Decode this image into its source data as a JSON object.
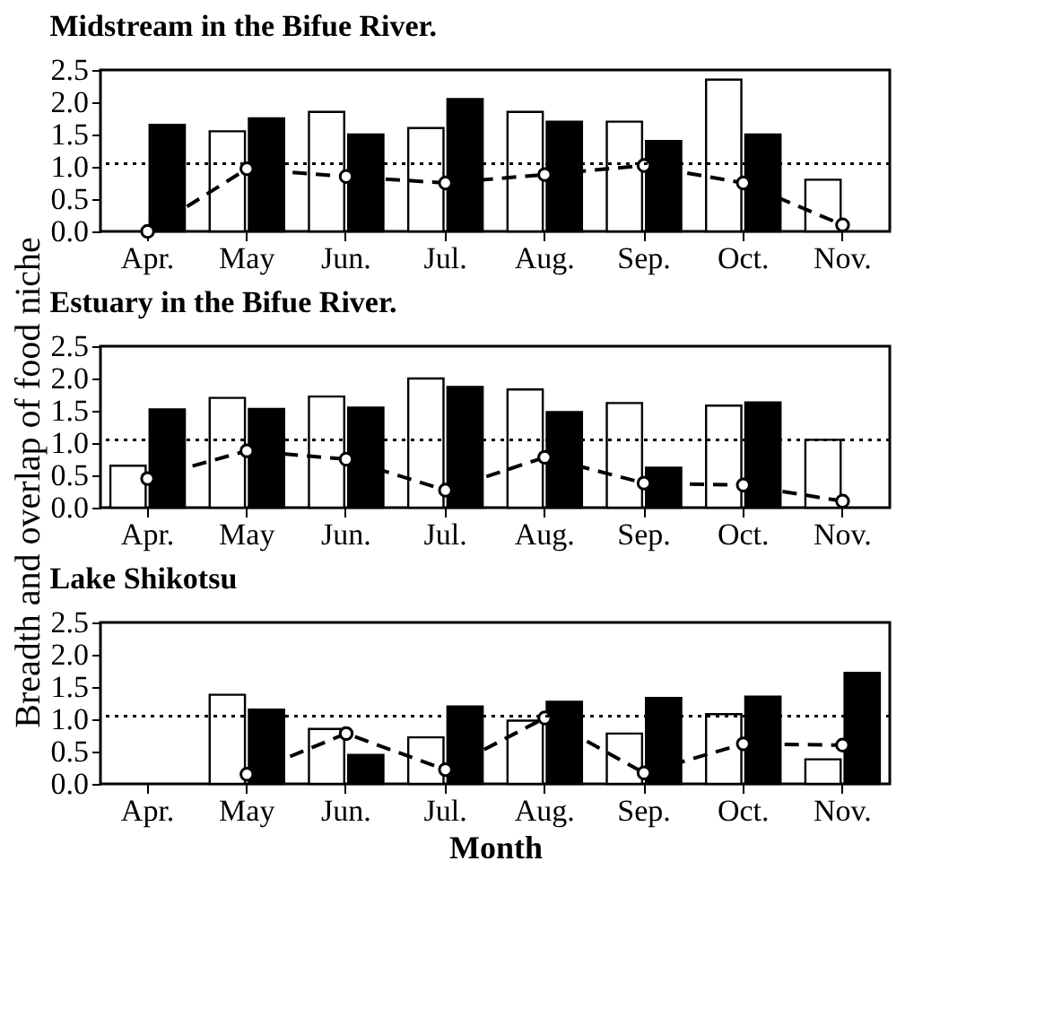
{
  "chart_data": [
    {
      "type": "bar",
      "title": "Midstream in the Bifue River.",
      "categories": [
        "Apr.",
        "May",
        "Jun.",
        "Jul.",
        "Aug.",
        "Sep.",
        "Oct.",
        "Nov."
      ],
      "series": [
        {
          "type": "bar",
          "color": "#ffffff",
          "values": [
            null,
            1.55,
            1.85,
            1.6,
            1.85,
            1.7,
            2.35,
            0.8
          ]
        },
        {
          "type": "bar",
          "color": "#000000",
          "values": [
            1.65,
            1.75,
            1.5,
            2.05,
            1.7,
            1.4,
            1.5,
            null
          ]
        },
        {
          "type": "line",
          "color": "#000000",
          "line_style": "dashed",
          "marker": "circle",
          "values": [
            0.0,
            0.97,
            0.85,
            0.75,
            0.88,
            1.02,
            0.75,
            0.1
          ]
        }
      ],
      "ylim": [
        0,
        2.5
      ],
      "yticks": [
        {
          "value": 0,
          "label": "0.0"
        },
        0.5,
        {
          "value": 1,
          "label": "1.0"
        },
        1.5,
        {
          "value": 2,
          "label": "2.0"
        },
        2.5
      ],
      "ref_lines": [
        {
          "axis": "y",
          "value": 1.05,
          "line_style": "dotted",
          "color": "#000000"
        }
      ]
    },
    {
      "type": "bar",
      "title": "Estuary in the Bifue River.",
      "ylabel": "Breadth and overlap of food niche",
      "categories": [
        "Apr.",
        "May",
        "Jun.",
        "Jul.",
        "Aug.",
        "Sep.",
        "Oct.",
        "Nov."
      ],
      "series": [
        {
          "type": "bar",
          "color": "#ffffff",
          "values": [
            0.65,
            1.7,
            1.72,
            2.0,
            1.83,
            1.62,
            1.58,
            1.05
          ]
        },
        {
          "type": "bar",
          "color": "#000000",
          "values": [
            1.52,
            1.53,
            1.55,
            1.87,
            1.48,
            0.62,
            1.63,
            null
          ]
        },
        {
          "type": "line",
          "color": "#000000",
          "line_style": "dashed",
          "marker": "circle",
          "values": [
            0.45,
            0.88,
            0.75,
            0.27,
            0.78,
            0.38,
            0.35,
            0.1
          ]
        }
      ],
      "ylim": [
        0,
        2.5
      ],
      "yticks": [
        {
          "value": 0,
          "label": "0.0"
        },
        0.5,
        {
          "value": 1,
          "label": "1.0"
        },
        1.5,
        {
          "value": 2,
          "label": "2.0"
        },
        2.5
      ],
      "ref_lines": [
        {
          "axis": "y",
          "value": 1.05,
          "line_style": "dotted",
          "color": "#000000"
        }
      ]
    },
    {
      "type": "bar",
      "title": "Lake Shikotsu",
      "xlabel": "Month",
      "categories": [
        "Apr.",
        "May",
        "Jun.",
        "Jul.",
        "Aug.",
        "Sep.",
        "Oct.",
        "Nov."
      ],
      "series": [
        {
          "type": "bar",
          "color": "#ffffff",
          "values": [
            null,
            1.38,
            0.85,
            0.72,
            0.98,
            0.78,
            1.08,
            0.38
          ]
        },
        {
          "type": "bar",
          "color": "#000000",
          "values": [
            null,
            1.15,
            0.45,
            1.2,
            1.27,
            1.33,
            1.35,
            1.72
          ]
        },
        {
          "type": "line",
          "color": "#000000",
          "line_style": "dashed",
          "marker": "circle",
          "values": [
            null,
            0.15,
            0.78,
            0.22,
            1.02,
            0.17,
            0.62,
            0.6
          ]
        }
      ],
      "ylim": [
        0,
        2.5
      ],
      "yticks": [
        {
          "value": 0,
          "label": "0.0"
        },
        0.5,
        {
          "value": 1,
          "label": "1.0"
        },
        1.5,
        {
          "value": 2,
          "label": "2.0"
        },
        2.5
      ],
      "ref_lines": [
        {
          "axis": "y",
          "value": 1.05,
          "line_style": "dotted",
          "color": "#000000"
        }
      ]
    }
  ]
}
